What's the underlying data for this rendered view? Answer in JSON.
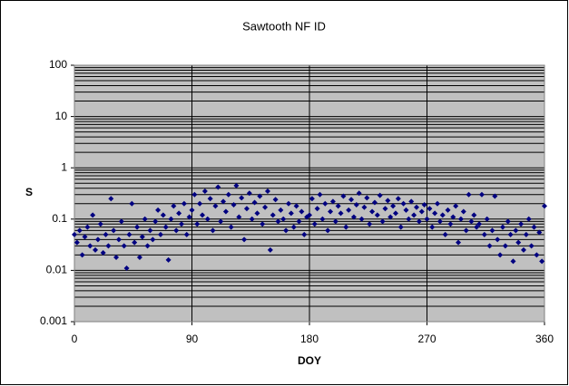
{
  "chart_data": {
    "type": "scatter",
    "title": "Sawtooth NF ID",
    "x_label": "DOY",
    "y_label": "S",
    "x": [
      0,
      2,
      4,
      6,
      8,
      10,
      12,
      14,
      16,
      18,
      20,
      22,
      24,
      26,
      28,
      30,
      32,
      34,
      36,
      38,
      40,
      42,
      44,
      46,
      48,
      50,
      52,
      54,
      56,
      58,
      60,
      62,
      64,
      66,
      68,
      70,
      72,
      74,
      76,
      78,
      80,
      82,
      84,
      86,
      88,
      90,
      92,
      94,
      96,
      98,
      100,
      102,
      104,
      106,
      108,
      110,
      112,
      114,
      116,
      118,
      120,
      122,
      124,
      126,
      128,
      130,
      132,
      134,
      136,
      138,
      140,
      142,
      144,
      146,
      148,
      150,
      152,
      154,
      156,
      158,
      160,
      162,
      164,
      166,
      168,
      170,
      172,
      174,
      176,
      178,
      180,
      182,
      184,
      186,
      188,
      190,
      192,
      194,
      196,
      198,
      200,
      202,
      204,
      206,
      208,
      210,
      212,
      214,
      216,
      218,
      220,
      222,
      224,
      226,
      228,
      230,
      232,
      234,
      236,
      238,
      240,
      242,
      244,
      246,
      248,
      250,
      252,
      254,
      256,
      258,
      260,
      262,
      264,
      266,
      268,
      270,
      272,
      274,
      276,
      278,
      280,
      282,
      284,
      286,
      288,
      290,
      292,
      294,
      296,
      298,
      300,
      302,
      304,
      306,
      308,
      310,
      312,
      314,
      316,
      318,
      320,
      322,
      324,
      326,
      328,
      330,
      332,
      334,
      336,
      338,
      340,
      342,
      344,
      346,
      348,
      350,
      352,
      354,
      356,
      358,
      360
    ],
    "values": [
      0.05,
      0.035,
      0.06,
      0.02,
      0.045,
      0.07,
      0.03,
      0.12,
      0.025,
      0.04,
      0.08,
      0.022,
      0.05,
      0.03,
      0.25,
      0.06,
      0.018,
      0.04,
      0.09,
      0.03,
      0.011,
      0.05,
      0.2,
      0.035,
      0.07,
      0.018,
      0.045,
      0.1,
      0.03,
      0.06,
      0.04,
      0.09,
      0.15,
      0.05,
      0.12,
      0.07,
      0.016,
      0.1,
      0.18,
      0.06,
      0.13,
      0.08,
      0.2,
      0.05,
      0.11,
      0.15,
      0.3,
      0.08,
      0.2,
      0.12,
      0.35,
      0.1,
      0.25,
      0.06,
      0.18,
      0.42,
      0.09,
      0.22,
      0.14,
      0.3,
      0.07,
      0.19,
      0.45,
      0.11,
      0.26,
      0.04,
      0.16,
      0.32,
      0.1,
      0.21,
      0.13,
      0.28,
      0.08,
      0.17,
      0.35,
      0.025,
      0.12,
      0.24,
      0.09,
      0.15,
      0.1,
      0.06,
      0.2,
      0.13,
      0.07,
      0.18,
      0.09,
      0.14,
      0.05,
      0.11,
      0.12,
      0.25,
      0.08,
      0.16,
      0.3,
      0.1,
      0.2,
      0.06,
      0.14,
      0.22,
      0.09,
      0.18,
      0.13,
      0.28,
      0.07,
      0.15,
      0.24,
      0.11,
      0.19,
      0.32,
      0.1,
      0.17,
      0.26,
      0.08,
      0.14,
      0.21,
      0.12,
      0.29,
      0.09,
      0.16,
      0.23,
      0.11,
      0.18,
      0.13,
      0.25,
      0.07,
      0.2,
      0.15,
      0.1,
      0.22,
      0.12,
      0.17,
      0.09,
      0.14,
      0.19,
      0.1,
      0.16,
      0.07,
      0.13,
      0.2,
      0.09,
      0.12,
      0.05,
      0.15,
      0.08,
      0.11,
      0.18,
      0.035,
      0.1,
      0.14,
      0.06,
      0.3,
      0.09,
      0.12,
      0.07,
      0.08,
      0.3,
      0.05,
      0.1,
      0.03,
      0.06,
      0.28,
      0.04,
      0.02,
      0.07,
      0.03,
      0.09,
      0.05,
      0.015,
      0.06,
      0.035,
      0.08,
      0.025,
      0.05,
      0.1,
      0.03,
      0.07,
      0.02,
      0.055,
      0.015,
      0.18
    ],
    "color": "#000080",
    "xlim": [
      0,
      360
    ],
    "xticks": [
      0,
      90,
      180,
      270,
      360
    ],
    "ylim": [
      0.001,
      100
    ],
    "yticks": [
      0.001,
      0.01,
      0.1,
      1,
      10,
      100
    ],
    "y_log": true,
    "grid": true,
    "minor_grid": true
  }
}
